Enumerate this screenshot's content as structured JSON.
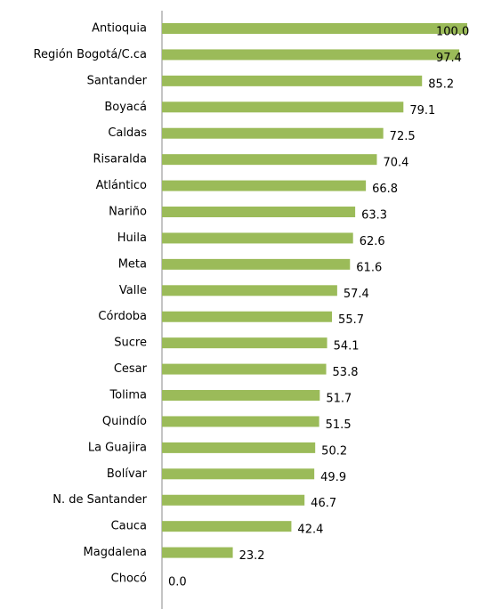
{
  "chart_data": {
    "type": "hbar",
    "categories": [
      "Antioquia",
      "Región Bogotá/C.ca",
      "Santander",
      "Boyacá",
      "Caldas",
      "Risaralda",
      "Atlántico",
      "Nariño",
      "Huila",
      "Meta",
      "Valle",
      "Córdoba",
      "Sucre",
      "Cesar",
      "Tolima",
      "Quindío",
      "La Guajira",
      "Bolívar",
      "N. de Santander",
      "Cauca",
      "Magdalena",
      "Chocó"
    ],
    "values": [
      100.0,
      97.4,
      85.2,
      79.1,
      72.5,
      70.4,
      66.8,
      63.3,
      62.6,
      61.6,
      57.4,
      55.7,
      54.1,
      53.8,
      51.7,
      51.5,
      50.2,
      49.9,
      46.7,
      42.4,
      23.2,
      0.0
    ],
    "value_labels": [
      "100.0",
      "97.4",
      "85.2",
      "79.1",
      "72.5",
      "70.4",
      "66.8",
      "63.3",
      "62.6",
      "61.6",
      "57.4",
      "55.7",
      "54.1",
      "53.8",
      "51.7",
      "51.5",
      "50.2",
      "49.9",
      "46.7",
      "42.4",
      "23.2",
      "0.0"
    ],
    "color": "#9bbb59",
    "xlim": [
      0,
      100
    ]
  }
}
